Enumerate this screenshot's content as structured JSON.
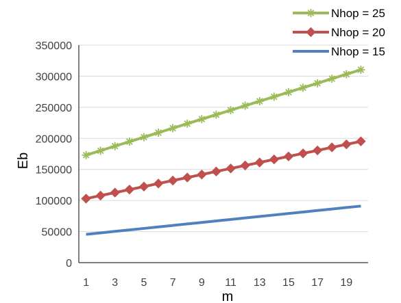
{
  "chart_data": {
    "type": "line",
    "xlabel": "m",
    "ylabel": "Eb",
    "x": [
      1,
      2,
      3,
      4,
      5,
      6,
      7,
      8,
      9,
      10,
      11,
      12,
      13,
      14,
      15,
      16,
      17,
      18,
      19,
      20
    ],
    "xticks": [
      "1",
      "3",
      "5",
      "7",
      "9",
      "11",
      "13",
      "15",
      "17",
      "19"
    ],
    "xtick_values": [
      1,
      3,
      5,
      7,
      9,
      11,
      13,
      15,
      17,
      19
    ],
    "yticks": [
      "0",
      "50000",
      "100000",
      "150000",
      "200000",
      "250000",
      "300000",
      "350000"
    ],
    "ylim": [
      0,
      350000
    ],
    "xlim": [
      0.5,
      20.5
    ],
    "grid": "horizontal",
    "legend_position": "top-right",
    "series": [
      {
        "name": "Nhop = 25",
        "color": "#9BBB59",
        "marker": "asterisk",
        "values": [
          173000,
          180200,
          187500,
          194700,
          201900,
          209200,
          216400,
          223600,
          230900,
          238100,
          245300,
          252600,
          259800,
          267000,
          274300,
          281500,
          288700,
          296000,
          303200,
          310400
        ]
      },
      {
        "name": "Nhop = 20",
        "color": "#C0504D",
        "marker": "diamond",
        "values": [
          103000,
          107900,
          112700,
          117600,
          122400,
          127300,
          132100,
          137000,
          141800,
          146700,
          151500,
          156400,
          161200,
          166100,
          170900,
          175800,
          180600,
          185500,
          190300,
          195200
        ]
      },
      {
        "name": "Nhop = 15",
        "color": "#4F81BD",
        "marker": "none",
        "values": [
          45500,
          47900,
          50300,
          52700,
          55100,
          57500,
          59900,
          62300,
          64700,
          67100,
          69500,
          71900,
          74300,
          76700,
          79100,
          81500,
          83900,
          86300,
          88700,
          91000
        ]
      }
    ]
  }
}
